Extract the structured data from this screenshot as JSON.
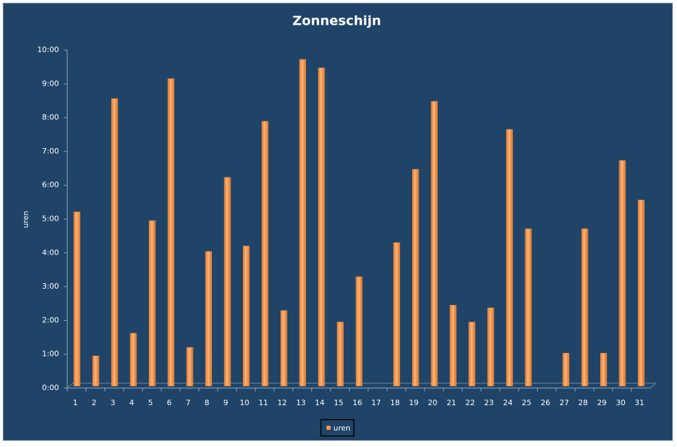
{
  "chart_data": {
    "type": "bar",
    "title": "Zonneschijn",
    "y_label": "uren",
    "categories": [
      "1",
      "2",
      "3",
      "4",
      "5",
      "6",
      "7",
      "8",
      "9",
      "10",
      "11",
      "12",
      "13",
      "14",
      "15",
      "16",
      "17",
      "18",
      "19",
      "20",
      "21",
      "22",
      "23",
      "24",
      "25",
      "26",
      "27",
      "28",
      "29",
      "30",
      "31"
    ],
    "series": [
      {
        "name": "uren",
        "color": "#f79646",
        "values": [
          5.15,
          0.89,
          8.5,
          1.56,
          4.89,
          9.09,
          1.14,
          3.98,
          6.17,
          4.14,
          7.83,
          2.23,
          9.66,
          9.41,
          1.89,
          3.23,
          0,
          4.24,
          6.41,
          8.42,
          2.39,
          1.89,
          2.31,
          7.59,
          4.65,
          0,
          0.97,
          4.65,
          0.97,
          6.67,
          5.5
        ]
      }
    ],
    "ylim": [
      0,
      10
    ],
    "yticks": [
      {
        "value": 0,
        "label": "0:00"
      },
      {
        "value": 1,
        "label": "1:00"
      },
      {
        "value": 2,
        "label": "2:00"
      },
      {
        "value": 3,
        "label": "3:00"
      },
      {
        "value": 4,
        "label": "4:00"
      },
      {
        "value": 5,
        "label": "5:00"
      },
      {
        "value": 6,
        "label": "6:00"
      },
      {
        "value": 7,
        "label": "7:00"
      },
      {
        "value": 8,
        "label": "8:00"
      },
      {
        "value": 9,
        "label": "9:00"
      },
      {
        "value": 10,
        "label": "10:00"
      }
    ],
    "legend": "bottom"
  }
}
